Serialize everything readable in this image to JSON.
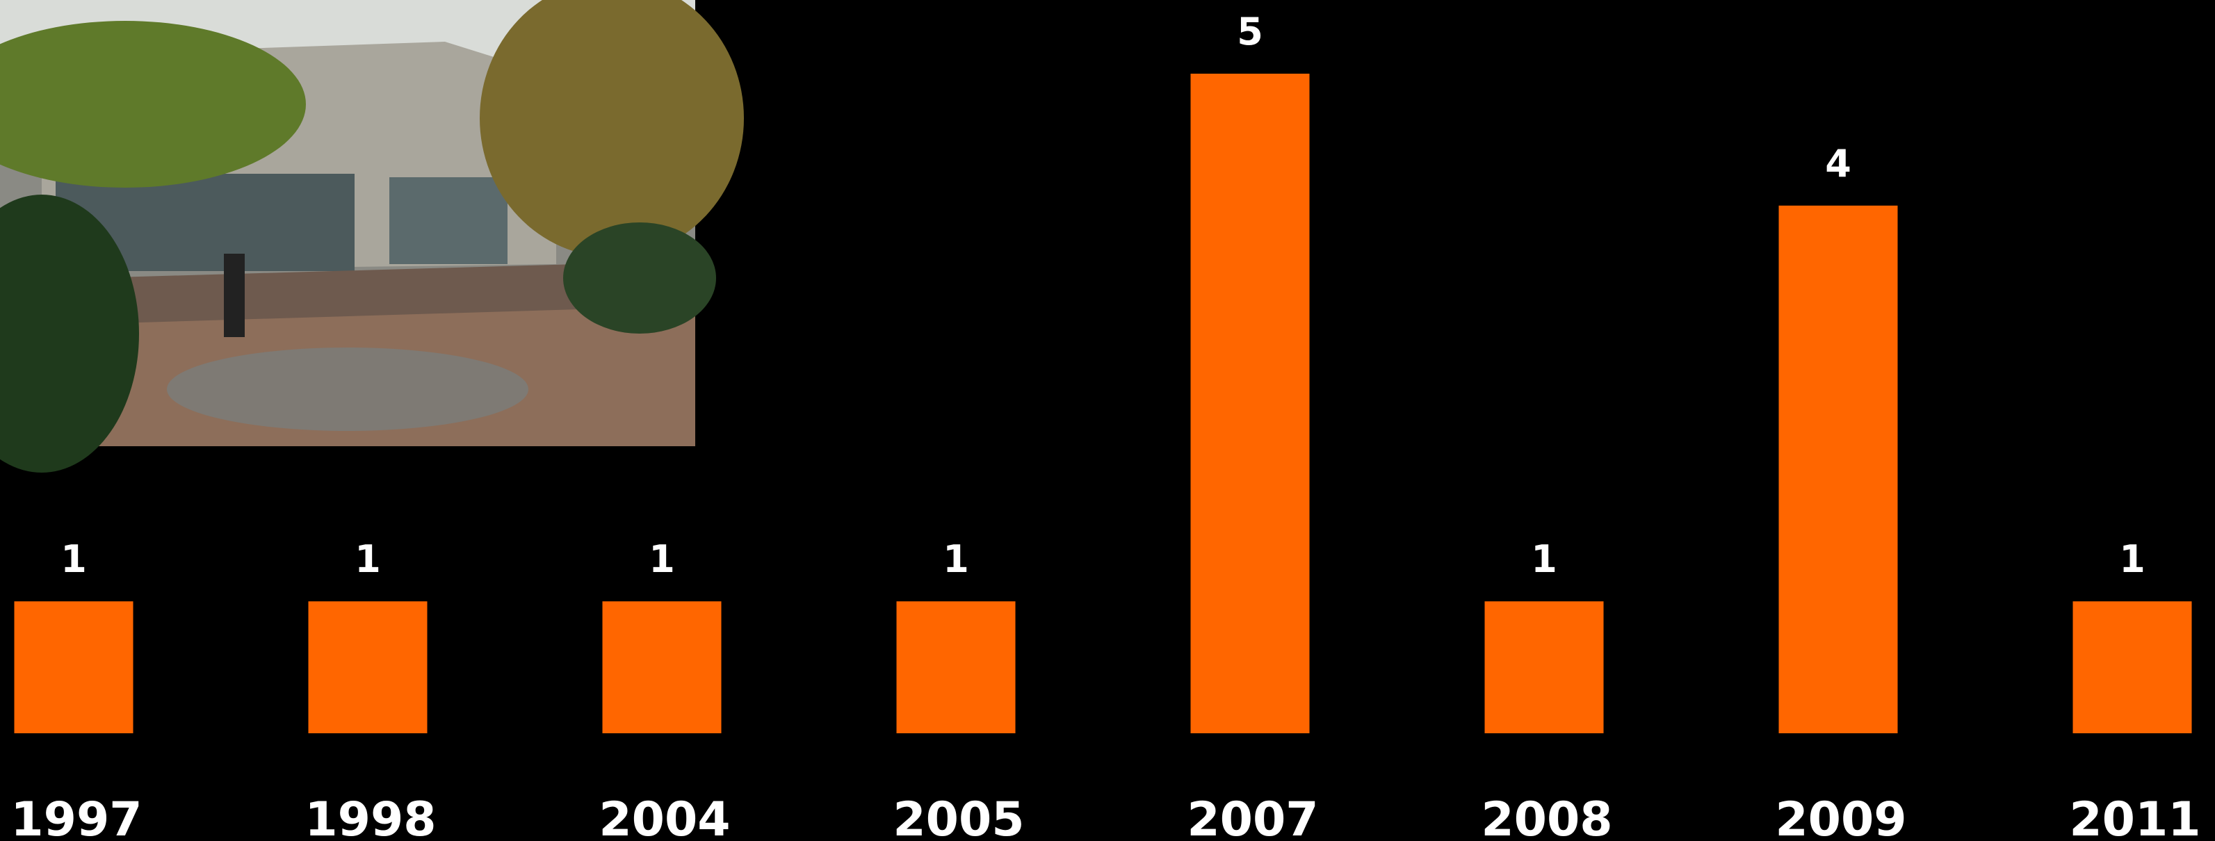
{
  "chart_data": {
    "type": "bar",
    "categories": [
      "1997",
      "1998",
      "2004",
      "2005",
      "2007",
      "2008",
      "2009",
      "2011"
    ],
    "values": [
      1,
      1,
      1,
      1,
      5,
      1,
      4,
      1
    ],
    "color": "#ff6600",
    "ylim": [
      0,
      5
    ],
    "data_labels": true
  }
}
